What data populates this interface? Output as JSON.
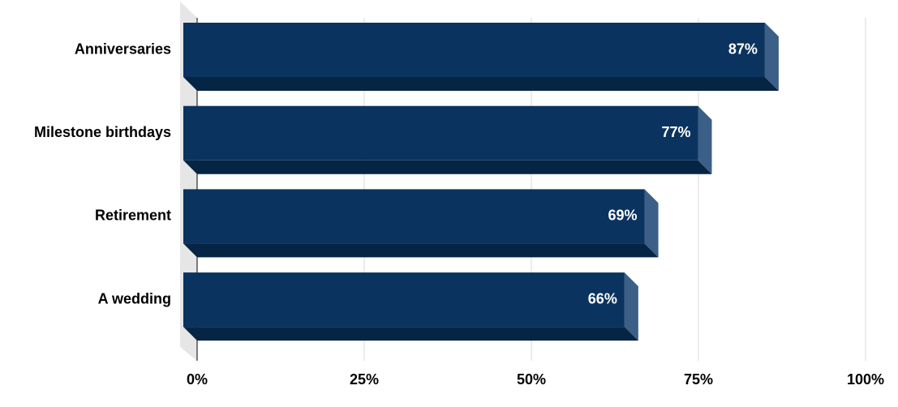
{
  "chart_data": {
    "type": "bar3d_horizontal",
    "categories": [
      "Anniversaries",
      "Milestone birthdays",
      "Retirement",
      "A wedding"
    ],
    "values": [
      87,
      77,
      69,
      66
    ],
    "value_labels": [
      "87%",
      "77%",
      "69%",
      "66%"
    ],
    "color": "#0b335f",
    "xlim": [
      0,
      100
    ],
    "xticks": [
      {
        "value": 0,
        "label": "0%"
      },
      {
        "value": 25,
        "label": "25%"
      },
      {
        "value": 50,
        "label": "50%"
      },
      {
        "value": 75,
        "label": "75%"
      },
      {
        "value": 100,
        "label": "100%"
      }
    ],
    "grid": true
  }
}
